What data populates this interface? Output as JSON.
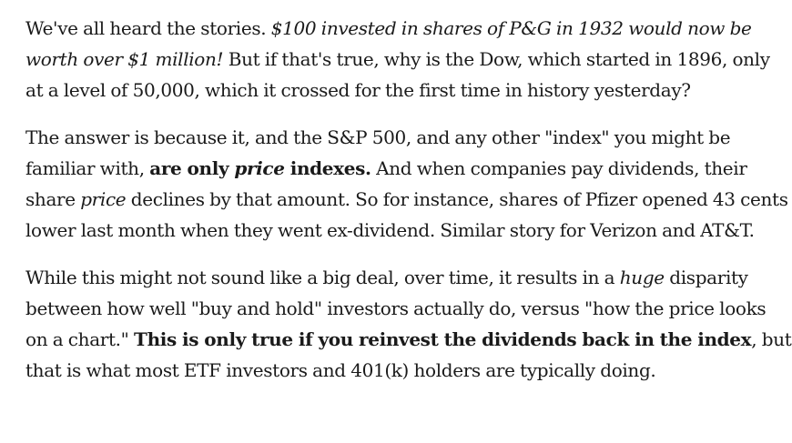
{
  "article": {
    "p1": {
      "lead": "We've all heard the stories. ",
      "quote": "$100 invested in shares of P&G in 1932 would now be worth over $1 million!",
      "rest": " But if that's true, why is the Dow, which started in 1896, only at a level of 50,000, which it crossed for the first time in history yesterday?"
    },
    "p2": {
      "lead": "The answer is because it, and the S&P 500, and any other \"index\" you might be familiar with, ",
      "bold_a": "are only ",
      "bold_italic": "price",
      "bold_b": " indexes.",
      "mid_a": " And when companies pay dividends, their share ",
      "italic_price": "price",
      "rest": " declines by that amount. So for instance, shares of Pfizer opened 43 cents lower last month when they went ex-dividend. Similar story for Verizon and AT&T."
    },
    "p3": {
      "lead": "While this might not sound like a big deal, over time, it results in a ",
      "italic_huge": "huge",
      "mid": " disparity between how well \"buy and hold\" investors actually do, versus \"how the price looks on a chart.\" ",
      "bold": "This is only true if you reinvest the dividends back in the index",
      "rest": ", but that is what most ETF investors and 401(k) holders are typically doing."
    }
  }
}
